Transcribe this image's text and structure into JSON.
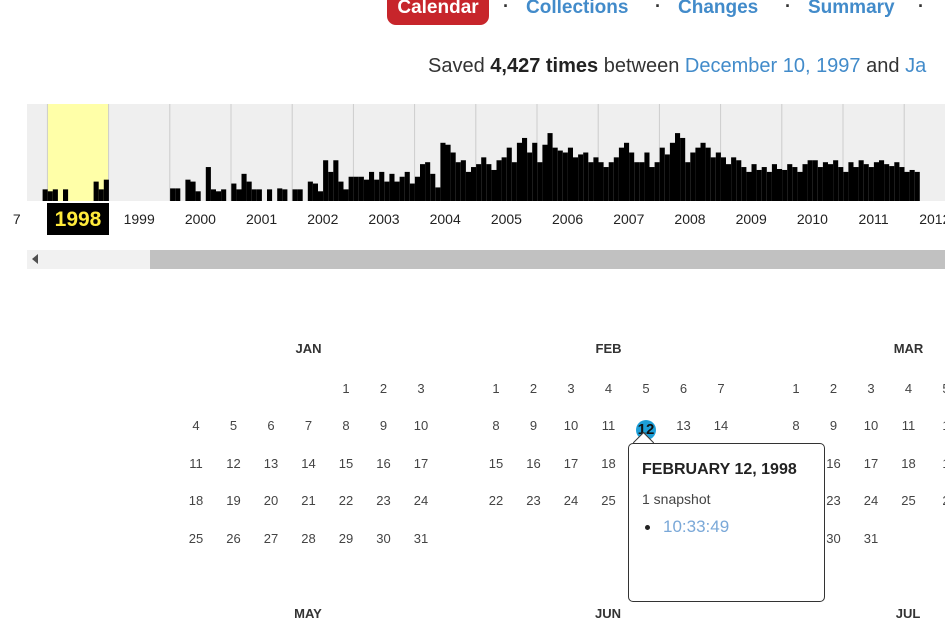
{
  "nav": {
    "calendar": "Calendar",
    "collections": "Collections",
    "changes": "Changes",
    "summary": "Summary",
    "sep": "·"
  },
  "saved": {
    "prefix": "Saved",
    "count": "4,427 times",
    "between": "between",
    "start": "December 10, 1997",
    "and": "and",
    "end_partial": "Ja"
  },
  "timeline": {
    "years": [
      "7",
      "1998",
      "1999",
      "2000",
      "2001",
      "2002",
      "2003",
      "2004",
      "2005",
      "2006",
      "2007",
      "2008",
      "2009",
      "2010",
      "2011",
      "2012"
    ],
    "selected_year": "1998",
    "highlight_color": "#ffffa8",
    "yearly_captures": [
      5,
      15,
      10,
      35,
      20,
      40,
      40,
      80,
      80,
      75,
      70,
      75,
      55,
      50,
      45,
      25
    ],
    "relative_monthly_levels": [
      0,
      0,
      0,
      0,
      0,
      0,
      0,
      0,
      0,
      0,
      0,
      0.12,
      0.1,
      0.12,
      0,
      0.12,
      0,
      0,
      0,
      0,
      0,
      0.2,
      0.12,
      0.22,
      0,
      0,
      0,
      0,
      0,
      0,
      0,
      0,
      0,
      0,
      0,
      0,
      0.13,
      0.13,
      0,
      0.22,
      0.2,
      0.1,
      0,
      0.35,
      0.12,
      0.1,
      0.12,
      0,
      0.18,
      0.12,
      0.28,
      0.2,
      0.12,
      0.12,
      0,
      0.12,
      0,
      0.13,
      0.12,
      0,
      0.12,
      0.12,
      0,
      0.2,
      0.18,
      0.1,
      0.42,
      0.3,
      0.42,
      0.2,
      0.12,
      0.25,
      0.25,
      0.25,
      0.22,
      0.3,
      0.22,
      0.3,
      0.2,
      0.28,
      0.2,
      0.25,
      0.3,
      0.18,
      0.25,
      0.38,
      0.4,
      0.28,
      0.14,
      0.6,
      0.58,
      0.5,
      0.4,
      0.42,
      0.3,
      0.35,
      0.38,
      0.45,
      0.38,
      0.32,
      0.42,
      0.45,
      0.55,
      0.4,
      0.6,
      0.65,
      0.5,
      0.6,
      0.4,
      0.58,
      0.7,
      0.55,
      0.52,
      0.5,
      0.55,
      0.45,
      0.48,
      0.5,
      0.4,
      0.45,
      0.4,
      0.35,
      0.4,
      0.45,
      0.55,
      0.6,
      0.5,
      0.4,
      0.4,
      0.5,
      0.35,
      0.4,
      0.55,
      0.48,
      0.6,
      0.7,
      0.65,
      0.4,
      0.5,
      0.55,
      0.6,
      0.55,
      0.45,
      0.5,
      0.45,
      0.38,
      0.45,
      0.42,
      0.35,
      0.3,
      0.38,
      0.32,
      0.35,
      0.3,
      0.38,
      0.33,
      0.32,
      0.38,
      0.35,
      0.3,
      0.38,
      0.42,
      0.42,
      0.35,
      0.4,
      0.38,
      0.42,
      0.35,
      0.3,
      0.4,
      0.35,
      0.42,
      0.38,
      0.35,
      0.4,
      0.42,
      0.38,
      0.36,
      0.4,
      0.35,
      0.3,
      0.32,
      0.3
    ]
  },
  "calendar": {
    "months": [
      {
        "name": "JAN",
        "weeks": [
          [
            "",
            "",
            "",
            "",
            "1",
            "2",
            "3"
          ],
          [
            "4",
            "5",
            "6",
            "7",
            "8",
            "9",
            "10"
          ],
          [
            "11",
            "12",
            "13",
            "14",
            "15",
            "16",
            "17"
          ],
          [
            "18",
            "19",
            "20",
            "21",
            "22",
            "23",
            "24"
          ],
          [
            "25",
            "26",
            "27",
            "28",
            "29",
            "30",
            "31"
          ]
        ]
      },
      {
        "name": "FEB",
        "weeks": [
          [
            "1",
            "2",
            "3",
            "4",
            "5",
            "6",
            "7"
          ],
          [
            "8",
            "9",
            "10",
            "11",
            "12",
            "13",
            "14"
          ],
          [
            "15",
            "16",
            "17",
            "18",
            "",
            "",
            ""
          ],
          [
            "22",
            "23",
            "24",
            "25",
            "",
            "",
            ""
          ]
        ]
      },
      {
        "name": "MAR",
        "weeks": [
          [
            "1",
            "2",
            "3",
            "4",
            "5"
          ],
          [
            "8",
            "9",
            "10",
            "11",
            "1"
          ],
          [
            "",
            "16",
            "17",
            "18",
            "1"
          ],
          [
            "",
            "23",
            "24",
            "25",
            "2"
          ],
          [
            "",
            "30",
            "31",
            "",
            ""
          ]
        ]
      }
    ],
    "snapshot_day": "12",
    "snapshot_color": "#1d9fd8",
    "next_row_months": [
      "MAY",
      "JUN",
      "JUL"
    ]
  },
  "popup": {
    "title": "FEBRUARY 12, 1998",
    "count": "1 snapshot",
    "time": "10:33:49"
  }
}
